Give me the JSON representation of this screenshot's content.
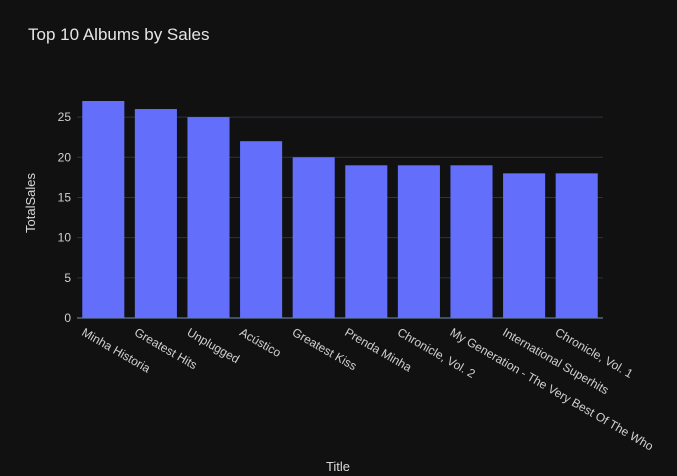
{
  "chart_data": {
    "type": "bar",
    "title": "Top 10 Albums by Sales",
    "xlabel": "Title",
    "ylabel": "TotalSales",
    "categories": [
      "Minha Historia",
      "Greatest Hits",
      "Unplugged",
      "Acústico",
      "Greatest Kiss",
      "Prenda Minha",
      "Chronicle, Vol. 2",
      "My Generation - The Very Best Of The Who",
      "International Superhits",
      "Chronicle, Vol. 1"
    ],
    "values": [
      27,
      26,
      25,
      22,
      20,
      19,
      19,
      19,
      18,
      18
    ],
    "ylim": [
      0,
      27
    ],
    "yticks": [
      0,
      5,
      10,
      15,
      20,
      25
    ],
    "grid": true,
    "bar_color": "#636efa",
    "background_color": "#111111",
    "grid_color": "#283442"
  }
}
